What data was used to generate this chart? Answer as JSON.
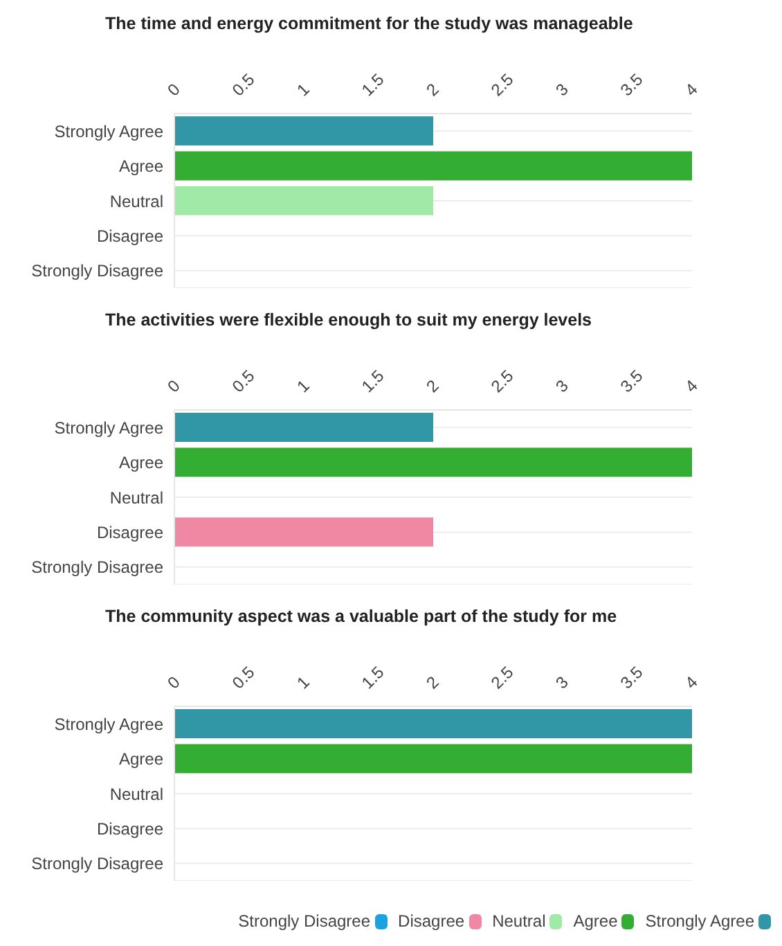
{
  "chart_data": [
    {
      "type": "bar",
      "orientation": "horizontal",
      "title": "The time and energy commitment for the study was manageable",
      "categories": [
        "Strongly Agree",
        "Agree",
        "Neutral",
        "Disagree",
        "Strongly Disagree"
      ],
      "values": [
        2,
        4,
        2,
        0,
        0
      ],
      "colors": [
        "#3196a6",
        "#33ae33",
        "#a0eaa8",
        "#f088a3",
        "#1aa3e0"
      ],
      "xlim": [
        0,
        4
      ],
      "xticks": [
        0,
        0.5,
        1,
        1.5,
        2,
        2.5,
        3,
        3.5,
        4
      ],
      "grid": "y"
    },
    {
      "type": "bar",
      "orientation": "horizontal",
      "title": "The activities were flexible enough to suit my energy levels",
      "categories": [
        "Strongly Agree",
        "Agree",
        "Neutral",
        "Disagree",
        "Strongly Disagree"
      ],
      "values": [
        2,
        4,
        0,
        2,
        0
      ],
      "colors": [
        "#3196a6",
        "#33ae33",
        "#a0eaa8",
        "#f088a3",
        "#1aa3e0"
      ],
      "xlim": [
        0,
        4
      ],
      "xticks": [
        0,
        0.5,
        1,
        1.5,
        2,
        2.5,
        3,
        3.5,
        4
      ],
      "grid": "y"
    },
    {
      "type": "bar",
      "orientation": "horizontal",
      "stacked": true,
      "title": "The community aspect was a valuable part of the study for me",
      "categories": [
        "Strongly Agree",
        "Agree",
        "Neutral",
        "Disagree",
        "Strongly Disagree"
      ],
      "series": [
        {
          "name": "Strongly Disagree",
          "color": "#1aa3e0",
          "values": [
            null,
            null,
            null,
            null,
            0
          ]
        },
        {
          "name": "Disagree",
          "color": "#f088a3",
          "values": [
            null,
            null,
            null,
            0,
            null
          ]
        },
        {
          "name": "Neutral",
          "color": "#a0eaa8",
          "values": [
            null,
            null,
            0,
            null,
            null
          ]
        },
        {
          "name": "Agree",
          "color": "#33ae33",
          "values": [
            null,
            4,
            null,
            null,
            null
          ]
        },
        {
          "name": "Strongly Agree",
          "color": "#3196a6",
          "values": [
            4,
            null,
            null,
            null,
            null
          ]
        }
      ],
      "xlim": [
        0,
        4
      ],
      "xticks": [
        0,
        0.5,
        1,
        1.5,
        2,
        2.5,
        3,
        3.5,
        4
      ],
      "grid": "y",
      "legend": "bottom right"
    }
  ]
}
